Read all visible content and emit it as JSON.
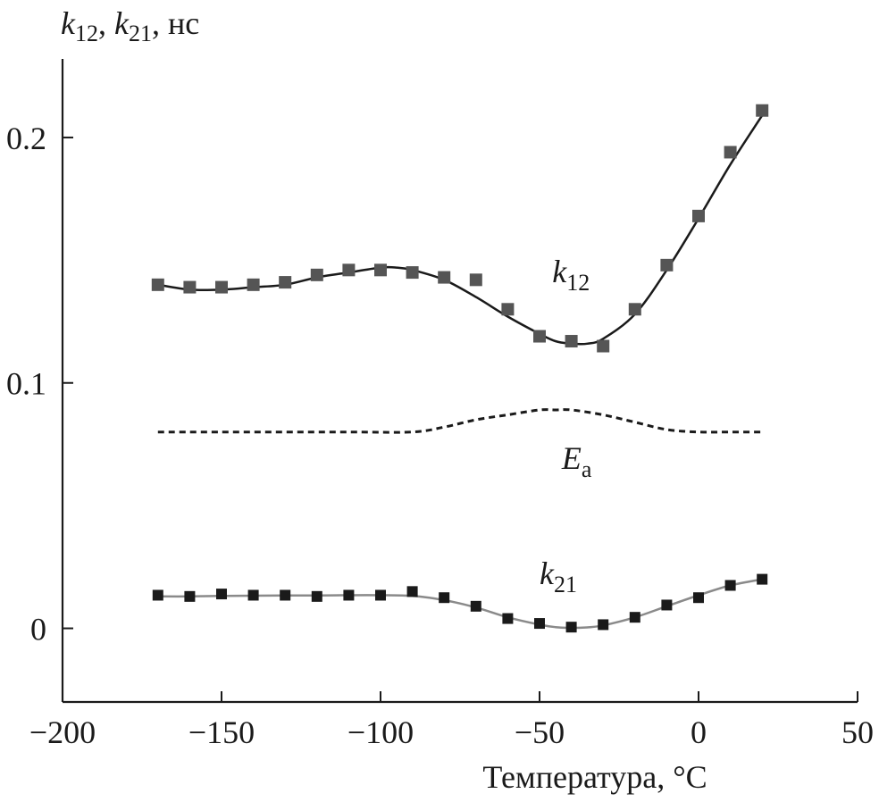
{
  "chart_data": {
    "type": "line",
    "title": "",
    "ylabel": {
      "k1": "k",
      "s1": "12",
      "sep": ", ",
      "k2": "k",
      "s2": "21",
      "unit": ", нс"
    },
    "xlabel": "Температура, °C",
    "xlim": [
      -200,
      50
    ],
    "ylim": [
      -0.03,
      0.232
    ],
    "x_ticks": [
      -200,
      -150,
      -100,
      -50,
      0,
      50
    ],
    "x_tick_labels": [
      "−200",
      "−150",
      "−100",
      "−50",
      "0",
      "50"
    ],
    "y_ticks": [
      0,
      0.1,
      0.2
    ],
    "y_tick_labels": [
      "0",
      "0.1",
      "0.2"
    ],
    "grid": false,
    "series": [
      {
        "name": "k12",
        "label_main": "k",
        "label_sub": "12",
        "label_at": [
          -46,
          0.141
        ],
        "marker": "square",
        "color": "#555555",
        "x": [
          -170,
          -160,
          -150,
          -140,
          -130,
          -120,
          -110,
          -100,
          -90,
          -80,
          -70,
          -60,
          -50,
          -40,
          -30,
          -20,
          -10,
          0,
          10,
          20
        ],
        "values": [
          0.14,
          0.139,
          0.139,
          0.14,
          0.141,
          0.144,
          0.146,
          0.146,
          0.145,
          0.143,
          0.142,
          0.13,
          0.119,
          0.117,
          0.115,
          0.13,
          0.148,
          0.168,
          0.194,
          0.211
        ],
        "fit_x": [
          -170,
          -160,
          -150,
          -140,
          -130,
          -120,
          -110,
          -100,
          -95,
          -90,
          -80,
          -70,
          -60,
          -50,
          -45,
          -40,
          -35,
          -30,
          -20,
          -10,
          0,
          10,
          20
        ],
        "fit_y": [
          0.14,
          0.138,
          0.138,
          0.139,
          0.14,
          0.143,
          0.145,
          0.147,
          0.147,
          0.146,
          0.142,
          0.135,
          0.127,
          0.12,
          0.117,
          0.116,
          0.116,
          0.118,
          0.128,
          0.146,
          0.167,
          0.189,
          0.209
        ],
        "fit_color": "#1a1a1a"
      },
      {
        "name": "k21",
        "label_main": "k",
        "label_sub": "21",
        "label_at": [
          -50,
          0.018
        ],
        "marker": "square",
        "color": "#1a1a1a",
        "x": [
          -170,
          -160,
          -150,
          -140,
          -130,
          -120,
          -110,
          -100,
          -90,
          -80,
          -70,
          -60,
          -50,
          -40,
          -30,
          -20,
          -10,
          0,
          10,
          20
        ],
        "values": [
          0.0135,
          0.013,
          0.014,
          0.0135,
          0.0135,
          0.013,
          0.0135,
          0.0135,
          0.015,
          0.0125,
          0.009,
          0.004,
          0.002,
          0.0005,
          0.0015,
          0.0045,
          0.0095,
          0.0125,
          0.0175,
          0.02
        ],
        "fit_x": [
          -170,
          -160,
          -150,
          -140,
          -130,
          -120,
          -110,
          -100,
          -90,
          -80,
          -70,
          -60,
          -50,
          -45,
          -40,
          -35,
          -30,
          -20,
          -10,
          0,
          10,
          20
        ],
        "fit_y": [
          0.013,
          0.013,
          0.0132,
          0.0133,
          0.0134,
          0.0134,
          0.0135,
          0.0135,
          0.0132,
          0.0115,
          0.0085,
          0.0045,
          0.0015,
          0.0005,
          0.0002,
          0.0004,
          0.0012,
          0.0045,
          0.009,
          0.0135,
          0.0175,
          0.02
        ],
        "fit_color": "#8a8a8a"
      },
      {
        "name": "Ea",
        "label_main": "E",
        "label_sub": "a",
        "label_at": [
          -43,
          0.065
        ],
        "style": "dashed",
        "color": "#1a1a1a",
        "x": [
          -170,
          -150,
          -130,
          -110,
          -90,
          -80,
          -70,
          -60,
          -50,
          -45,
          -40,
          -30,
          -20,
          -10,
          0,
          10,
          20
        ],
        "values": [
          0.08,
          0.08,
          0.08,
          0.08,
          0.08,
          0.082,
          0.085,
          0.087,
          0.089,
          0.089,
          0.089,
          0.087,
          0.084,
          0.081,
          0.08,
          0.08,
          0.08
        ]
      }
    ]
  }
}
